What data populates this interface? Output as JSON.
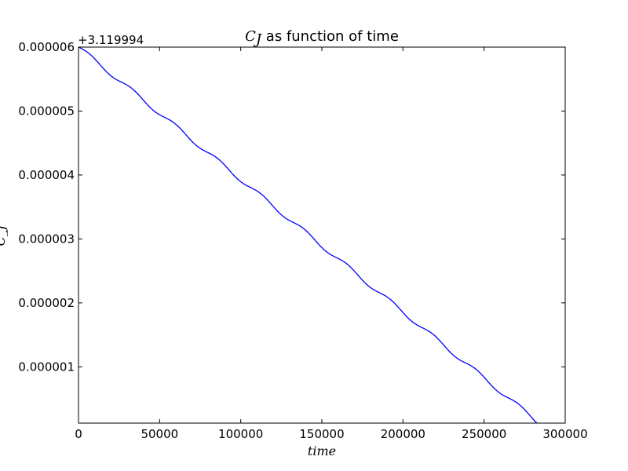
{
  "chart_data": {
    "type": "line",
    "title": {
      "math": "C",
      "math_sub": "J",
      "text": " as function of time"
    },
    "xlabel": "time",
    "ylabel": "C_J",
    "y_offset_text": "+3.119994",
    "xlim": [
      0,
      300000
    ],
    "ylim": [
      1.2e-07,
      6e-06
    ],
    "x_ticks": [
      0,
      50000,
      100000,
      150000,
      200000,
      250000,
      300000
    ],
    "x_tick_labels": [
      "0",
      "50000",
      "100000",
      "150000",
      "200000",
      "250000",
      "300000"
    ],
    "y_ticks": [
      1e-06,
      2e-06,
      3e-06,
      4e-06,
      5e-06,
      6e-06
    ],
    "y_tick_labels": [
      "0.000001",
      "0.000002",
      "0.000003",
      "0.000004",
      "0.000005",
      "0.000006"
    ],
    "grid": false,
    "series": [
      {
        "color": "#0000ff",
        "trend": {
          "x_start": 0,
          "y_start": 6e-06,
          "x_end": 284000,
          "y_end": 1.2e-07
        },
        "wiggle": {
          "amplitude": 3.5e-08,
          "period": 26500
        }
      }
    ]
  }
}
